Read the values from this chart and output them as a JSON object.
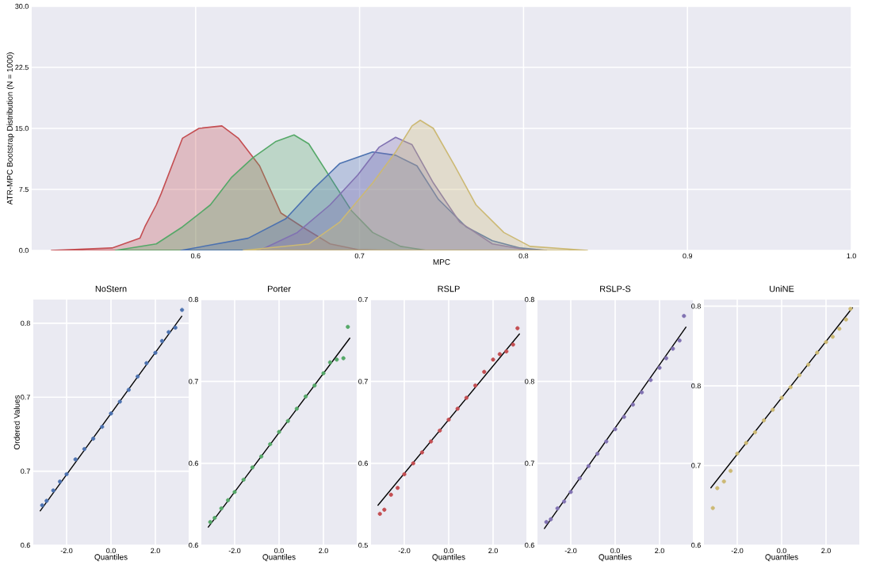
{
  "chart_data": [
    {
      "type": "area",
      "xlabel": "MPC",
      "ylabel": "ATR-MPC Bootstrap Distribution (N = 1000)",
      "xlim": [
        0.5,
        1.0
      ],
      "ylim": [
        0,
        30
      ],
      "xticks": [
        0.6,
        0.7,
        0.8,
        0.9,
        {
          "value": 1,
          "label": "1.0"
        }
      ],
      "yticks": [
        {
          "value": 0,
          "label": "0.0"
        },
        {
          "value": 7.5,
          "label": "7.5"
        },
        {
          "value": 15,
          "label": "15.0"
        },
        {
          "value": 22.5,
          "label": "22.5"
        },
        {
          "value": 30,
          "label": "30.0"
        }
      ],
      "grid": true,
      "series": [
        {
          "color": "#c44e52",
          "x": [
            0.512,
            0.549,
            0.566,
            0.569,
            0.576,
            0.579,
            0.592,
            0.602,
            0.616,
            0.626,
            0.639,
            0.652,
            0.665,
            0.682,
            0.699,
            0.718
          ],
          "values": [
            0,
            0.3,
            1.5,
            2.9,
            5.6,
            7.0,
            13.8,
            15.0,
            15.3,
            13.8,
            10.4,
            4.6,
            2.9,
            0.8,
            0.1,
            0
          ]
        },
        {
          "color": "#55a868",
          "x": [
            0.551,
            0.576,
            0.592,
            0.609,
            0.622,
            0.635,
            0.649,
            0.66,
            0.669,
            0.682,
            0.695,
            0.708,
            0.725,
            0.741,
            0.771
          ],
          "values": [
            0,
            0.8,
            2.9,
            5.6,
            9.0,
            11.4,
            13.4,
            14.2,
            13.1,
            9.0,
            4.9,
            2.2,
            0.5,
            0,
            0
          ]
        },
        {
          "color": "#4c72b0",
          "x": [
            0.591,
            0.632,
            0.655,
            0.672,
            0.688,
            0.708,
            0.722,
            0.735,
            0.748,
            0.765,
            0.781,
            0.798,
            0.814
          ],
          "values": [
            0,
            1.5,
            3.9,
            7.6,
            10.7,
            12.1,
            11.7,
            10.4,
            6.3,
            2.9,
            1.2,
            0.3,
            0
          ]
        },
        {
          "color": "#8172b2",
          "x": [
            0.639,
            0.662,
            0.682,
            0.699,
            0.712,
            0.722,
            0.732,
            0.745,
            0.761,
            0.781,
            0.801,
            0.814
          ],
          "values": [
            0,
            2.2,
            5.6,
            9.3,
            12.7,
            13.9,
            13.0,
            8.3,
            3.5,
            0.8,
            0.1,
            0
          ]
        },
        {
          "color": "#ccb974",
          "x": [
            0.629,
            0.669,
            0.688,
            0.708,
            0.722,
            0.732,
            0.737,
            0.745,
            0.758,
            0.771,
            0.788,
            0.804,
            0.839
          ],
          "values": [
            0,
            0.8,
            3.5,
            8.3,
            12.1,
            15.3,
            16.0,
            15.0,
            10.4,
            5.6,
            2.2,
            0.5,
            0
          ]
        }
      ]
    },
    {
      "type": "scatter",
      "title": "NoStern",
      "xlabel": "Quantiles",
      "ylabel": "Ordered Values",
      "xlim": [
        -3.5,
        3.5
      ],
      "ylim": [
        0.625,
        0.791
      ],
      "xticks": [
        {
          "value": -2,
          "label": "-2.0"
        },
        {
          "value": 0,
          "label": "0.0"
        },
        {
          "value": 2,
          "label": "2.0"
        }
      ],
      "yticks": [
        {
          "value": 0.625,
          "label": "0.6"
        },
        {
          "value": 0.675,
          "label": "0.7"
        },
        {
          "value": 0.725,
          "label": "0.7"
        },
        {
          "value": 0.775,
          "label": "0.8"
        }
      ],
      "grid": true,
      "series": [
        {
          "color": "#4c72b0",
          "marker": "circle",
          "x": [
            -3.1,
            -2.9,
            -2.6,
            -2.3,
            -2.0,
            -1.6,
            -1.2,
            -0.8,
            -0.4,
            0,
            0.4,
            0.8,
            1.2,
            1.6,
            2.0,
            2.3,
            2.6,
            2.9,
            3.2
          ],
          "values": [
            0.652,
            0.655,
            0.662,
            0.668,
            0.673,
            0.683,
            0.69,
            0.697,
            0.705,
            0.714,
            0.722,
            0.73,
            0.739,
            0.748,
            0.755,
            0.763,
            0.769,
            0.772,
            0.784
          ]
        },
        {
          "type": "line",
          "marker": "none",
          "color": "#000000",
          "x": [
            -3.2,
            3.2
          ],
          "values": [
            0.648,
            0.78
          ]
        }
      ]
    },
    {
      "type": "scatter",
      "title": "Porter",
      "xlabel": "Quantiles",
      "xlim": [
        -3.5,
        3.5
      ],
      "ylim": [
        0.58,
        0.76
      ],
      "xticks": [
        {
          "value": -2,
          "label": "-2.0"
        },
        {
          "value": 0,
          "label": "0.0"
        },
        {
          "value": 2,
          "label": "2.0"
        }
      ],
      "yticks": [
        {
          "value": 0.58,
          "label": "0.6"
        },
        {
          "value": 0.64,
          "label": "0.6"
        },
        {
          "value": 0.7,
          "label": "0.7"
        },
        {
          "value": 0.76,
          "label": "0.8"
        }
      ],
      "grid": true,
      "series": [
        {
          "color": "#55a868",
          "marker": "circle",
          "x": [
            -3.1,
            -2.9,
            -2.6,
            -2.3,
            -2.0,
            -1.6,
            -1.2,
            -0.8,
            -0.4,
            0,
            0.4,
            0.8,
            1.2,
            1.6,
            2.0,
            2.3,
            2.6,
            2.9,
            3.1
          ],
          "values": [
            0.597,
            0.6,
            0.607,
            0.613,
            0.619,
            0.628,
            0.637,
            0.645,
            0.654,
            0.663,
            0.671,
            0.68,
            0.689,
            0.697,
            0.706,
            0.714,
            0.716,
            0.717,
            0.74
          ]
        },
        {
          "type": "line",
          "marker": "none",
          "color": "#000000",
          "x": [
            -3.2,
            3.2
          ],
          "values": [
            0.593,
            0.732
          ]
        }
      ]
    },
    {
      "type": "scatter",
      "title": "RSLP",
      "xlabel": "Quantiles",
      "xlim": [
        -3.5,
        3.5
      ],
      "ylim": [
        0.53,
        0.71
      ],
      "xticks": [
        {
          "value": -2,
          "label": "-2.0"
        },
        {
          "value": 0,
          "label": "0.0"
        },
        {
          "value": 2,
          "label": "2.0"
        }
      ],
      "yticks": [
        {
          "value": 0.53,
          "label": "0.5"
        },
        {
          "value": 0.59,
          "label": "0.6"
        },
        {
          "value": 0.65,
          "label": "0.7"
        },
        {
          "value": 0.71,
          "label": "0.7"
        }
      ],
      "grid": true,
      "series": [
        {
          "color": "#c44e52",
          "marker": "circle",
          "x": [
            -3.1,
            -2.9,
            -2.6,
            -2.3,
            -2.0,
            -1.6,
            -1.2,
            -0.8,
            -0.4,
            0,
            0.4,
            0.8,
            1.2,
            1.6,
            2.0,
            2.3,
            2.6,
            2.9,
            3.1
          ],
          "values": [
            0.553,
            0.556,
            0.567,
            0.572,
            0.582,
            0.59,
            0.598,
            0.606,
            0.614,
            0.622,
            0.63,
            0.638,
            0.647,
            0.657,
            0.666,
            0.67,
            0.672,
            0.677,
            0.689
          ]
        },
        {
          "type": "line",
          "marker": "none",
          "color": "#000000",
          "x": [
            -3.2,
            3.2
          ],
          "values": [
            0.559,
            0.685
          ]
        }
      ]
    },
    {
      "type": "scatter",
      "title": "RSLP-S",
      "xlabel": "Quantiles",
      "xlim": [
        -3.5,
        3.5
      ],
      "ylim": [
        0.64,
        0.82
      ],
      "xticks": [
        {
          "value": -2,
          "label": "-2.0"
        },
        {
          "value": 0,
          "label": "0.0"
        },
        {
          "value": 2,
          "label": "2.0"
        }
      ],
      "yticks": [
        {
          "value": 0.64,
          "label": "0.6"
        },
        {
          "value": 0.7,
          "label": "0.7"
        },
        {
          "value": 0.76,
          "label": "0.8"
        },
        {
          "value": 0.82,
          "label": "0.8"
        }
      ],
      "grid": true,
      "series": [
        {
          "color": "#8172b2",
          "marker": "circle",
          "x": [
            -3.1,
            -2.9,
            -2.6,
            -2.3,
            -2.0,
            -1.6,
            -1.2,
            -0.8,
            -0.4,
            0,
            0.4,
            0.8,
            1.2,
            1.6,
            2.0,
            2.3,
            2.6,
            2.9,
            3.1
          ],
          "values": [
            0.657,
            0.659,
            0.667,
            0.672,
            0.679,
            0.689,
            0.698,
            0.707,
            0.716,
            0.725,
            0.734,
            0.743,
            0.752,
            0.761,
            0.77,
            0.777,
            0.784,
            0.79,
            0.808
          ]
        },
        {
          "type": "line",
          "marker": "none",
          "color": "#000000",
          "x": [
            -3.2,
            3.2
          ],
          "values": [
            0.652,
            0.8
          ]
        }
      ]
    },
    {
      "type": "scatter",
      "title": "UniNE",
      "xlabel": "Quantiles",
      "xlim": [
        -3.5,
        3.5
      ],
      "ylim": [
        0.64,
        0.825
      ],
      "xticks": [
        {
          "value": -2,
          "label": "-2.0"
        },
        {
          "value": 0,
          "label": "0.0"
        },
        {
          "value": 2,
          "label": "2.0"
        }
      ],
      "yticks": [
        {
          "value": 0.64,
          "label": "0.6"
        },
        {
          "value": 0.7,
          "label": "0.7"
        },
        {
          "value": 0.76,
          "label": "0.8"
        },
        {
          "value": 0.82,
          "label": "0.8"
        }
      ],
      "grid": true,
      "series": [
        {
          "color": "#ccb974",
          "marker": "circle",
          "x": [
            -3.1,
            -2.9,
            -2.6,
            -2.3,
            -2.0,
            -1.6,
            -1.2,
            -0.8,
            -0.4,
            0,
            0.4,
            0.8,
            1.2,
            1.6,
            2.0,
            2.3,
            2.6,
            2.9,
            3.1
          ],
          "values": [
            0.668,
            0.683,
            0.688,
            0.696,
            0.709,
            0.717,
            0.725,
            0.734,
            0.742,
            0.751,
            0.759,
            0.768,
            0.776,
            0.785,
            0.793,
            0.797,
            0.803,
            0.81,
            0.818
          ]
        },
        {
          "type": "line",
          "marker": "none",
          "color": "#000000",
          "x": [
            -3.2,
            3.2
          ],
          "values": [
            0.683,
            0.819
          ]
        }
      ]
    }
  ]
}
